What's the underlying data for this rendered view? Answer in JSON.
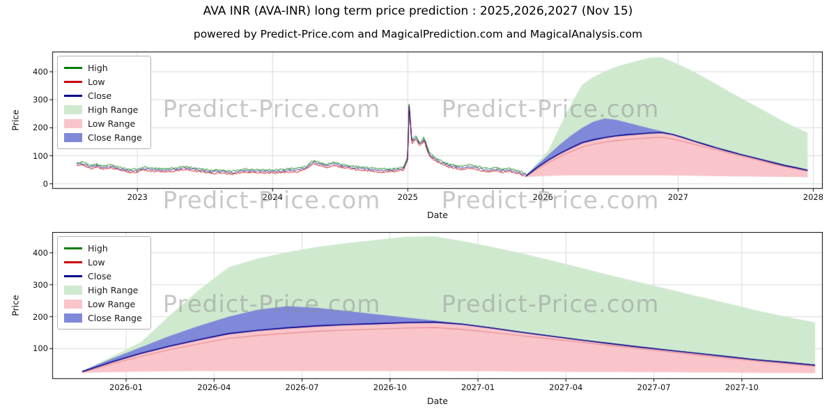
{
  "header": {
    "title": "AVA INR (AVA-INR) long term price prediction : 2025,2026,2027 (Nov 15)",
    "subtitle": "powered by Predict-Price.com and MagicalPrediction.com and MagicalAnalysis.com"
  },
  "watermark": {
    "text": "Predict-Price.com"
  },
  "colors": {
    "high_line": "#007d00",
    "low_line": "#cc0000",
    "close_line": "#00008b",
    "high_range_fill": "#cfe9cf",
    "low_range_fill": "#f9c5ca",
    "close_range_fill": "#7f88d9",
    "low_pred_line": "#e88a90",
    "grid": "#d9d9d9",
    "axis": "#000000",
    "watermark_color": "#8c8c8c"
  },
  "chart_data": [
    {
      "type": "line",
      "name": "overview",
      "canvas_name": "overview-chart-canvas",
      "xlabel": "Date",
      "ylabel": "Price",
      "xlim": [
        2022.37,
        2028.07
      ],
      "ylim": [
        -18,
        472
      ],
      "xticks": [
        2023,
        2024,
        2025,
        2026,
        2027,
        2028
      ],
      "xtick_labels": [
        "2023",
        "2024",
        "2025",
        "2026",
        "2027",
        "2028"
      ],
      "yticks": [
        0,
        100,
        200,
        300,
        400
      ],
      "ytick_labels": [
        "0",
        "100",
        "200",
        "300",
        "400"
      ],
      "show_history": true,
      "prediction_key": "shared_prediction",
      "legend": [
        {
          "label": "High",
          "type": "line",
          "color": "#007d00"
        },
        {
          "label": "Low",
          "type": "line",
          "color": "#cc0000"
        },
        {
          "label": "Close",
          "type": "line",
          "color": "#00008b"
        },
        {
          "label": "High Range",
          "type": "patch",
          "color": "#cfe9cf"
        },
        {
          "label": "Low Range",
          "type": "patch",
          "color": "#f9c5ca"
        },
        {
          "label": "Close Range",
          "type": "patch",
          "color": "#7f88d9"
        }
      ],
      "history": {
        "x": [
          2022.55,
          2022.6,
          2022.65,
          2022.7,
          2022.75,
          2022.8,
          2022.85,
          2022.9,
          2022.95,
          2023.0,
          2023.05,
          2023.1,
          2023.2,
          2023.3,
          2023.35,
          2023.4,
          2023.5,
          2023.55,
          2023.6,
          2023.7,
          2023.8,
          2023.9,
          2024.0,
          2024.1,
          2024.2,
          2024.25,
          2024.3,
          2024.35,
          2024.4,
          2024.45,
          2024.5,
          2024.6,
          2024.7,
          2024.8,
          2024.9,
          2024.97,
          2025.0,
          2025.01,
          2025.03,
          2025.06,
          2025.09,
          2025.12,
          2025.16,
          2025.2,
          2025.25,
          2025.3,
          2025.35,
          2025.4,
          2025.45,
          2025.5,
          2025.55,
          2025.6,
          2025.65,
          2025.7,
          2025.75,
          2025.8,
          2025.85,
          2025.88
        ],
        "close": [
          70,
          72,
          60,
          64,
          58,
          62,
          56,
          50,
          46,
          47,
          55,
          50,
          48,
          52,
          57,
          52,
          46,
          42,
          44,
          40,
          46,
          45,
          44,
          47,
          50,
          58,
          78,
          70,
          63,
          72,
          65,
          57,
          52,
          47,
          49,
          55,
          90,
          280,
          150,
          165,
          140,
          160,
          105,
          88,
          75,
          65,
          60,
          56,
          62,
          58,
          52,
          48,
          52,
          46,
          50,
          44,
          36,
          30
        ],
        "noise": 6
      }
    },
    {
      "type": "line",
      "name": "prediction-detail",
      "canvas_name": "detail-chart-canvas",
      "xlabel": "Date",
      "ylabel": "Price",
      "xlim": [
        2025.79,
        2027.98
      ],
      "ylim": [
        5,
        465
      ],
      "xticks": [
        2026.0,
        2026.25,
        2026.5,
        2026.75,
        2027.0,
        2027.25,
        2027.5,
        2027.75
      ],
      "xtick_labels": [
        "2026-01",
        "2026-04",
        "2026-07",
        "2026-10",
        "2027-01",
        "2027-04",
        "2027-07",
        "2027-10"
      ],
      "yticks": [
        100,
        200,
        300,
        400
      ],
      "ytick_labels": [
        "100",
        "200",
        "300",
        "400"
      ],
      "show_history": false,
      "prediction_key": "shared_prediction",
      "legend": [
        {
          "label": "High",
          "type": "line",
          "color": "#007d00"
        },
        {
          "label": "Low",
          "type": "line",
          "color": "#cc0000"
        },
        {
          "label": "Close",
          "type": "line",
          "color": "#00008b"
        },
        {
          "label": "High Range",
          "type": "patch",
          "color": "#cfe9cf"
        },
        {
          "label": "Low Range",
          "type": "patch",
          "color": "#f9c5ca"
        },
        {
          "label": "Close Range",
          "type": "patch",
          "color": "#7f88d9"
        }
      ]
    }
  ],
  "shared_prediction": {
    "months": [
      "2025-11",
      "2025-12",
      "2026-01",
      "2026-02",
      "2026-03",
      "2026-04",
      "2026-05",
      "2026-06",
      "2026-07",
      "2026-08",
      "2026-09",
      "2026-10",
      "2026-11",
      "2026-12",
      "2027-01",
      "2027-02",
      "2027-03",
      "2027-04",
      "2027-05",
      "2027-06",
      "2027-07",
      "2027-08",
      "2027-09",
      "2027-10",
      "2027-11",
      "2027-12"
    ],
    "high": [
      30,
      75,
      120,
      205,
      285,
      355,
      382,
      402,
      418,
      430,
      440,
      450,
      452,
      436,
      418,
      398,
      376,
      353,
      330,
      308,
      286,
      264,
      242,
      220,
      200,
      182
    ],
    "close_upper": [
      30,
      68,
      104,
      140,
      172,
      200,
      222,
      233,
      228,
      218,
      208,
      198,
      188,
      178,
      166,
      152,
      140,
      127,
      116,
      106,
      96,
      86,
      76,
      66,
      58,
      50
    ],
    "close": [
      28,
      58,
      85,
      108,
      128,
      147,
      157,
      165,
      171,
      175,
      178,
      181,
      183,
      176,
      164,
      151,
      139,
      127,
      116,
      105,
      95,
      85,
      75,
      65,
      57,
      48
    ],
    "low": [
      26,
      52,
      76,
      97,
      115,
      132,
      141,
      148,
      154,
      158,
      161,
      164,
      166,
      160,
      150,
      140,
      130,
      120,
      110,
      100,
      90,
      80,
      70,
      61,
      53,
      45
    ],
    "low_floor": [
      24,
      26,
      28,
      29,
      30,
      30,
      30,
      30,
      30,
      30,
      30,
      30,
      30,
      29,
      29,
      28,
      28,
      27,
      27,
      26,
      26,
      25,
      25,
      24,
      24,
      23
    ]
  }
}
